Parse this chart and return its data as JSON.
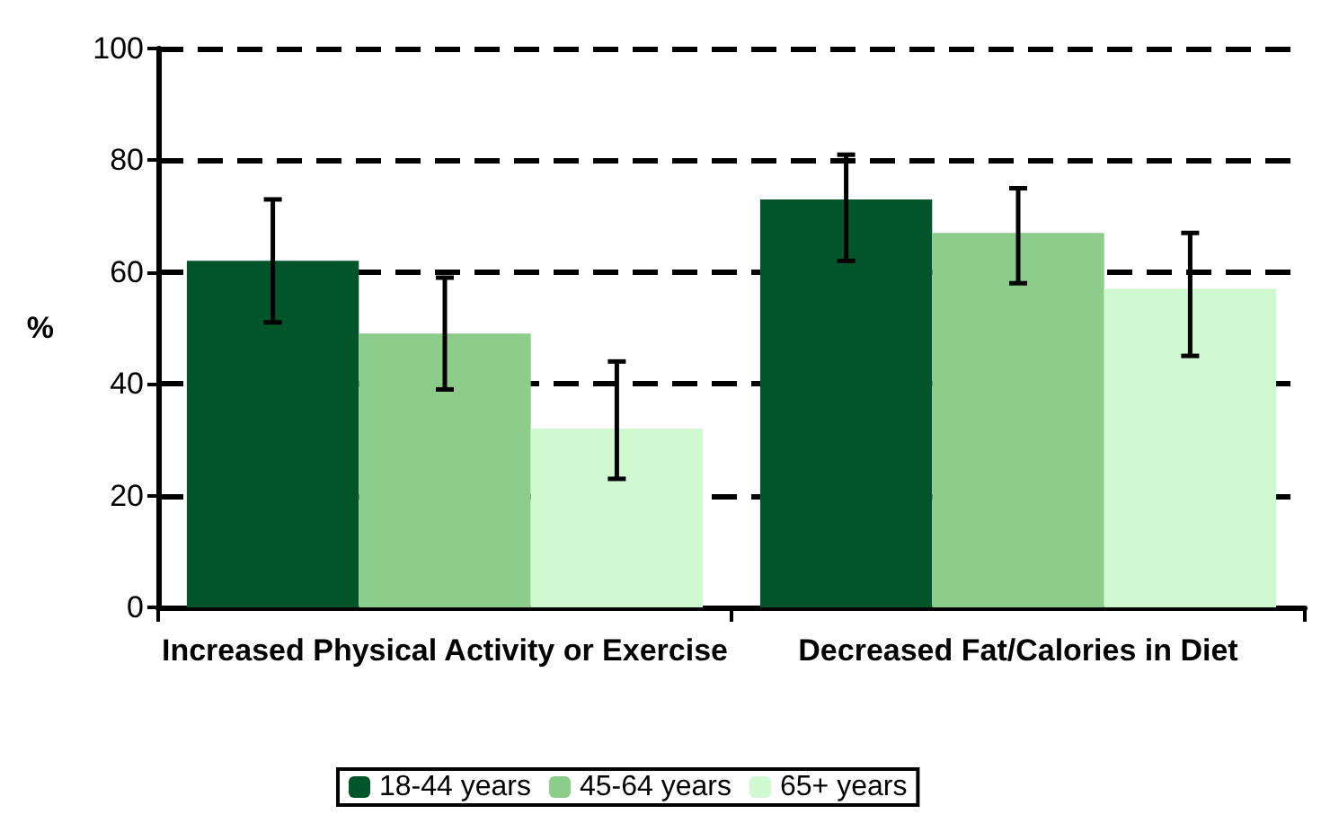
{
  "chart_data": {
    "type": "bar",
    "ylabel": "%",
    "categories": [
      "Increased Physical Activity or Exercise",
      "Decreased Fat/Calories in Diet"
    ],
    "series": [
      {
        "name": "18-44 years",
        "color": "#02542a",
        "values": [
          62,
          73
        ],
        "errors": [
          [
            51,
            73
          ],
          [
            62,
            81
          ]
        ]
      },
      {
        "name": "45-64 years",
        "color": "#8ccd8c",
        "values": [
          49,
          67
        ],
        "errors": [
          [
            39,
            59
          ],
          [
            58,
            75
          ]
        ]
      },
      {
        "name": "65+ years",
        "color": "#d0f9d2",
        "values": [
          32,
          57
        ],
        "errors": [
          [
            23,
            44
          ],
          [
            45,
            67
          ]
        ]
      }
    ],
    "ylim": [
      0,
      100
    ],
    "yticks": [
      0,
      20,
      40,
      60,
      80,
      100
    ],
    "grid": "y",
    "legend": "bottom"
  }
}
